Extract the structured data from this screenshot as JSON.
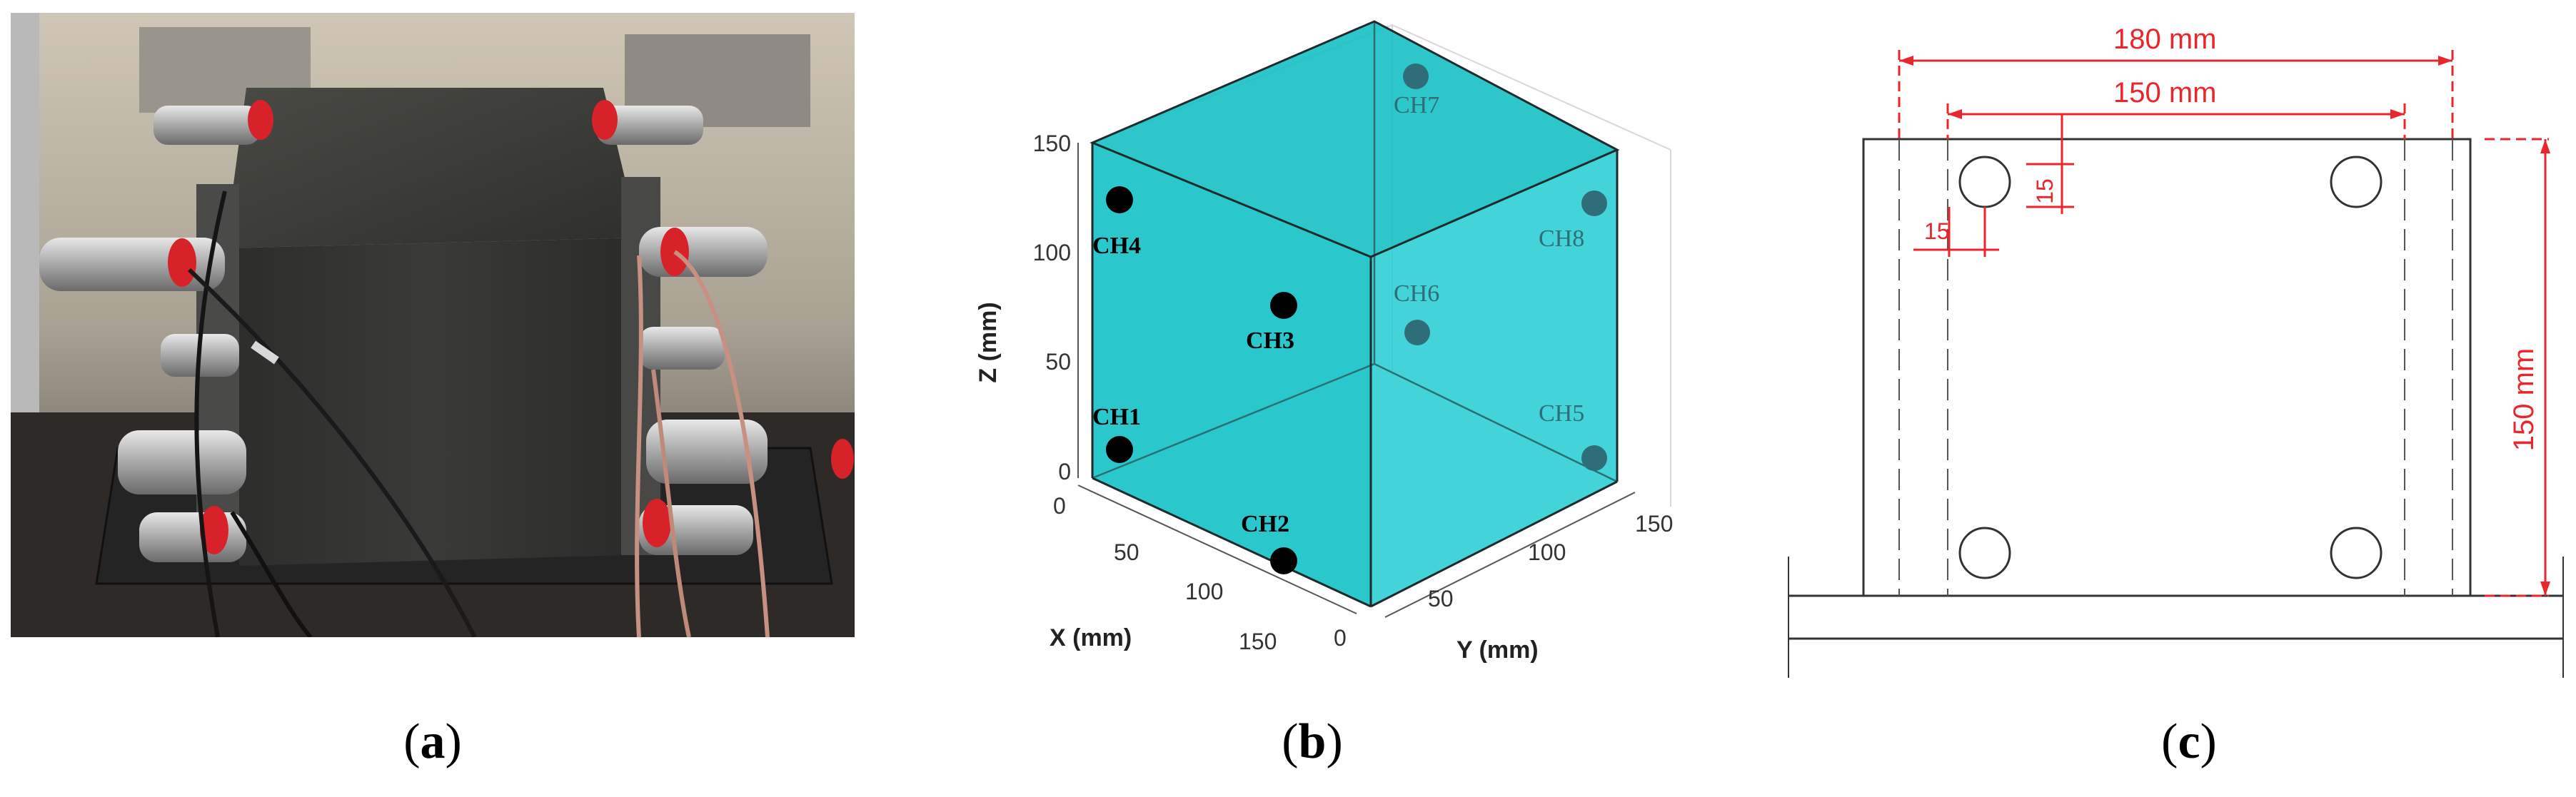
{
  "captions": {
    "a": {
      "open": "(",
      "letter": "a",
      "close": ")"
    },
    "b": {
      "open": "(",
      "letter": "b",
      "close": ")"
    },
    "c": {
      "open": "(",
      "letter": "c",
      "close": ")"
    }
  },
  "panel_b": {
    "axis_labels": {
      "x": "X (mm)",
      "y": "Y (mm)",
      "z": "Z (mm)"
    },
    "z_ticks": [
      "0",
      "50",
      "100",
      "150"
    ],
    "x_ticks": [
      "0",
      "50",
      "100",
      "150"
    ],
    "y_ticks": [
      "0",
      "50",
      "100",
      "150"
    ],
    "sensors": [
      {
        "label": "CH1",
        "hidden": false
      },
      {
        "label": "CH2",
        "hidden": false
      },
      {
        "label": "CH3",
        "hidden": false
      },
      {
        "label": "CH4",
        "hidden": false
      },
      {
        "label": "CH5",
        "hidden": true
      },
      {
        "label": "CH6",
        "hidden": true
      },
      {
        "label": "CH7",
        "hidden": true
      },
      {
        "label": "CH8",
        "hidden": true
      }
    ],
    "colors": {
      "cube_fill": "#11c4c9",
      "cube_edge": "#1f2a2b",
      "sensor_front": "#000000",
      "sensor_back": "#2f6d78"
    }
  },
  "panel_c": {
    "dim_180": "180 mm",
    "dim_150_top": "150 mm",
    "dim_150_side": "150 mm",
    "dim_15_a": "15",
    "dim_15_b": "15",
    "colors": {
      "dimension": "#e8262b",
      "outline": "#333333"
    }
  }
}
